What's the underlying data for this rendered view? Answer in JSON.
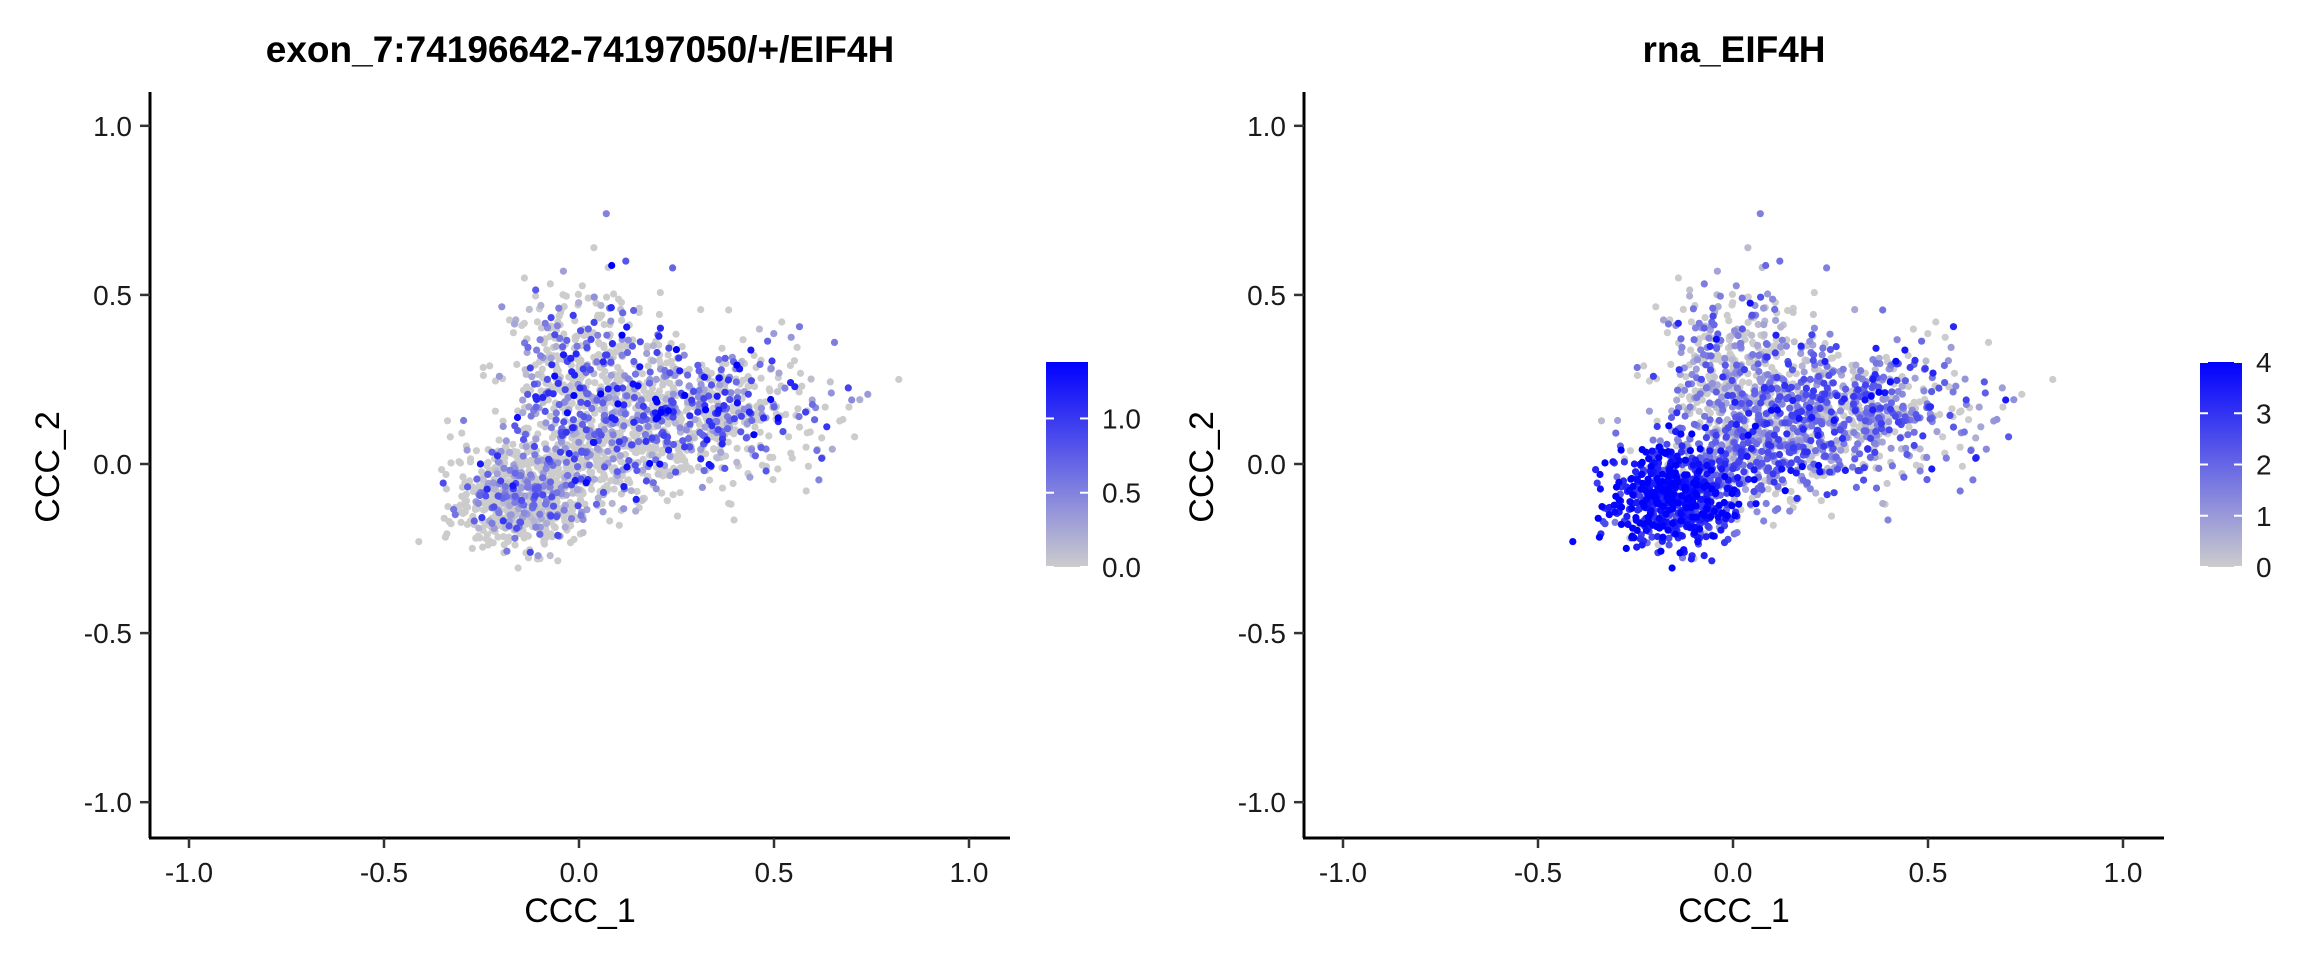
{
  "colors": {
    "low": "#cccccc",
    "high": "#0000ff",
    "axis": "#000000"
  },
  "chart_data": [
    {
      "type": "scatter",
      "title": "exon_7:74196642-74197050/+/EIF4H",
      "xlabel": "CCC_1",
      "ylabel": "CCC_2",
      "xlim": [
        -1.1,
        1.1
      ],
      "ylim": [
        -1.1,
        1.1
      ],
      "xticks": [
        "-1.0",
        "-0.5",
        "0.0",
        "0.5",
        "1.0"
      ],
      "xtick_values": [
        -1.0,
        -0.5,
        0.0,
        0.5,
        1.0
      ],
      "yticks": [
        "1.0",
        "0.5",
        "0.0",
        "-0.5",
        "-1.0"
      ],
      "ytick_values": [
        1.0,
        0.5,
        0.0,
        -0.5,
        -1.0
      ],
      "grid": false,
      "legend": {
        "type": "colorbar",
        "position": "right",
        "range": [
          0,
          1.38
        ],
        "ticks": [
          "1.0",
          "0.5",
          "0.0"
        ],
        "tick_values": [
          1.0,
          0.5,
          0.0
        ]
      },
      "outliers": [
        {
          "x": 0.07,
          "y": 0.74,
          "v": 0.5
        },
        {
          "x": 0.72,
          "y": 0.19,
          "v": 0.2
        },
        {
          "x": 0.82,
          "y": 0.25,
          "v": 0.0
        },
        {
          "x": 0.61,
          "y": 0.04,
          "v": 0.6
        },
        {
          "x": -0.33,
          "y": 0.08,
          "v": 0.0
        },
        {
          "x": 0.12,
          "y": 0.6,
          "v": 0.8
        },
        {
          "x": 0.24,
          "y": 0.58,
          "v": 0.7
        },
        {
          "x": -0.14,
          "y": 0.55,
          "v": 0.0
        },
        {
          "x": -0.04,
          "y": 0.57,
          "v": 0.3
        },
        {
          "x": -0.1,
          "y": -0.28,
          "v": 0.0
        },
        {
          "x": 0.52,
          "y": 0.42,
          "v": 0.0
        }
      ],
      "clusters": [
        {
          "cx": -0.15,
          "cy": -0.1,
          "sx": 0.08,
          "sy": 0.07,
          "n": 650,
          "vmean": 0.3,
          "vspread": 0.4,
          "pzero": 0.6
        },
        {
          "cx": 0.28,
          "cy": 0.15,
          "sx": 0.16,
          "sy": 0.1,
          "n": 700,
          "vmean": 0.45,
          "vspread": 0.5,
          "pzero": 0.45
        },
        {
          "cx": 0.0,
          "cy": 0.28,
          "sx": 0.1,
          "sy": 0.12,
          "n": 380,
          "vmean": 0.4,
          "vspread": 0.5,
          "pzero": 0.55
        },
        {
          "cx": 0.05,
          "cy": 0.05,
          "sx": 0.12,
          "sy": 0.09,
          "n": 420,
          "vmean": 0.4,
          "vspread": 0.5,
          "pzero": 0.55
        }
      ]
    },
    {
      "type": "scatter",
      "title": "rna_EIF4H",
      "xlabel": "CCC_1",
      "ylabel": "CCC_2",
      "xlim": [
        -1.1,
        1.1
      ],
      "ylim": [
        -1.1,
        1.1
      ],
      "xticks": [
        "-1.0",
        "-0.5",
        "0.0",
        "0.5",
        "1.0"
      ],
      "xtick_values": [
        -1.0,
        -0.5,
        0.0,
        0.5,
        1.0
      ],
      "yticks": [
        "1.0",
        "0.5",
        "0.0",
        "-0.5",
        "-1.0"
      ],
      "ytick_values": [
        1.0,
        0.5,
        0.0,
        -0.5,
        -1.0
      ],
      "grid": false,
      "legend": {
        "type": "colorbar",
        "position": "right",
        "range": [
          0,
          4
        ],
        "ticks": [
          "4",
          "3",
          "2",
          "1",
          "0"
        ],
        "tick_values": [
          4,
          3,
          2,
          1,
          0
        ]
      },
      "outliers": [
        {
          "x": 0.07,
          "y": 0.74,
          "v": 1.5
        },
        {
          "x": 0.72,
          "y": 0.19,
          "v": 1.2
        },
        {
          "x": 0.82,
          "y": 0.25,
          "v": 0.0
        },
        {
          "x": 0.61,
          "y": 0.04,
          "v": 2.0
        },
        {
          "x": -0.33,
          "y": -0.13,
          "v": 3.0
        },
        {
          "x": 0.12,
          "y": 0.6,
          "v": 1.8
        },
        {
          "x": 0.24,
          "y": 0.58,
          "v": 1.5
        },
        {
          "x": -0.14,
          "y": 0.55,
          "v": 0.0
        },
        {
          "x": -0.04,
          "y": 0.57,
          "v": 0.8
        },
        {
          "x": -0.1,
          "y": -0.28,
          "v": 0.0
        },
        {
          "x": 0.52,
          "y": 0.42,
          "v": 0.0
        }
      ],
      "clusters": [
        {
          "cx": -0.15,
          "cy": -0.1,
          "sx": 0.08,
          "sy": 0.07,
          "n": 650,
          "vmean": 3.3,
          "vspread": 0.8,
          "pzero": 0.02
        },
        {
          "cx": 0.28,
          "cy": 0.15,
          "sx": 0.16,
          "sy": 0.1,
          "n": 700,
          "vmean": 1.6,
          "vspread": 1.0,
          "pzero": 0.2
        },
        {
          "cx": 0.0,
          "cy": 0.28,
          "sx": 0.1,
          "sy": 0.12,
          "n": 380,
          "vmean": 1.1,
          "vspread": 1.0,
          "pzero": 0.35
        },
        {
          "cx": 0.05,
          "cy": 0.05,
          "sx": 0.12,
          "sy": 0.09,
          "n": 420,
          "vmean": 1.7,
          "vspread": 1.0,
          "pzero": 0.25
        }
      ]
    }
  ]
}
